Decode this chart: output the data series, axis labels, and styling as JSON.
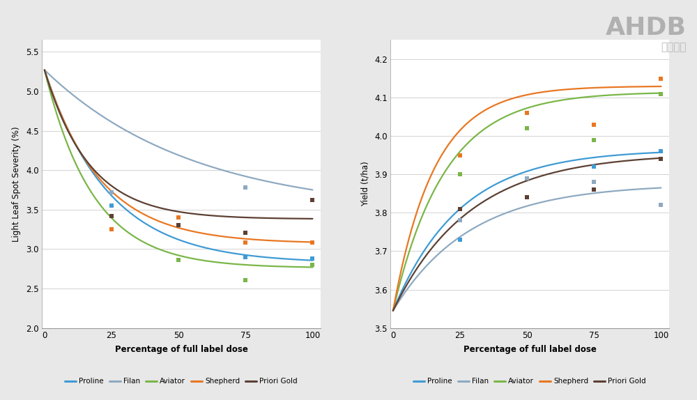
{
  "colors": {
    "Proline": "#3E9BD4",
    "Filan": "#8EA9C1",
    "Aviator": "#7AB648",
    "Shepherd": "#E87722",
    "Priori Gold": "#5C4033"
  },
  "lls_data_points": {
    "Proline": {
      "x": [
        25,
        50,
        75,
        100
      ],
      "y": [
        3.55,
        2.86,
        2.9,
        2.88
      ]
    },
    "Filan": {
      "x": [
        25,
        75
      ],
      "y": [
        3.72,
        3.78
      ]
    },
    "Aviator": {
      "x": [
        50,
        75,
        100
      ],
      "y": [
        2.86,
        2.61,
        2.8
      ]
    },
    "Shepherd": {
      "x": [
        25,
        50,
        75,
        100
      ],
      "y": [
        3.25,
        3.4,
        3.08,
        3.08
      ]
    },
    "Priori Gold": {
      "x": [
        25,
        50,
        75,
        100
      ],
      "y": [
        3.42,
        3.3,
        3.21,
        3.62
      ]
    }
  },
  "lls_curves": {
    "Proline": {
      "x0": 5.27,
      "asymptote": 2.82,
      "rate": 0.042
    },
    "Filan": {
      "x0": 5.27,
      "asymptote": 3.45,
      "rate": 0.018
    },
    "Aviator": {
      "x0": 5.27,
      "asymptote": 2.76,
      "rate": 0.055
    },
    "Shepherd": {
      "x0": 5.27,
      "asymptote": 3.07,
      "rate": 0.048
    },
    "Priori Gold": {
      "x0": 5.27,
      "asymptote": 3.38,
      "rate": 0.06
    }
  },
  "yield_data_points": {
    "Proline": {
      "x": [
        25,
        50,
        75,
        100
      ],
      "y": [
        3.73,
        3.89,
        3.92,
        3.96
      ]
    },
    "Filan": {
      "x": [
        25,
        50,
        75,
        100
      ],
      "y": [
        3.78,
        3.89,
        3.88,
        3.82
      ]
    },
    "Aviator": {
      "x": [
        25,
        50,
        75,
        100
      ],
      "y": [
        3.9,
        4.02,
        3.99,
        4.11
      ]
    },
    "Shepherd": {
      "x": [
        25,
        50,
        75,
        100
      ],
      "y": [
        3.95,
        4.06,
        4.03,
        4.15
      ]
    },
    "Priori Gold": {
      "x": [
        25,
        50,
        75,
        100
      ],
      "y": [
        3.81,
        3.84,
        3.86,
        3.94
      ]
    }
  },
  "yield_curves": {
    "Proline": {
      "x0": 3.545,
      "asymptote": 3.965,
      "rate": 0.04
    },
    "Filan": {
      "x0": 3.545,
      "asymptote": 3.875,
      "rate": 0.035
    },
    "Aviator": {
      "x0": 3.545,
      "asymptote": 4.115,
      "rate": 0.052
    },
    "Shepherd": {
      "x0": 3.545,
      "asymptote": 4.13,
      "rate": 0.065
    },
    "Priori Gold": {
      "x0": 3.545,
      "asymptote": 3.955,
      "rate": 0.035
    }
  },
  "x_ticks": [
    0,
    25,
    50,
    75,
    100
  ],
  "lls_ylim": [
    2.0,
    5.65
  ],
  "lls_yticks": [
    2.0,
    2.5,
    3.0,
    3.5,
    4.0,
    4.5,
    5.0,
    5.5
  ],
  "yield_ylim": [
    3.5,
    4.25
  ],
  "yield_yticks": [
    3.5,
    3.6,
    3.7,
    3.8,
    3.9,
    4.0,
    4.1,
    4.2
  ],
  "xlabel": "Percentage of full label dose",
  "lls_ylabel": "Light Leaf Spot Severity (%)",
  "yield_ylabel": "Yield (t/ha)",
  "legend_labels": [
    "Proline",
    "Filan",
    "Aviator",
    "Shepherd",
    "Priori Gold"
  ],
  "ahdb_text": "AHDB",
  "fig_bg": "#e8e8e8"
}
